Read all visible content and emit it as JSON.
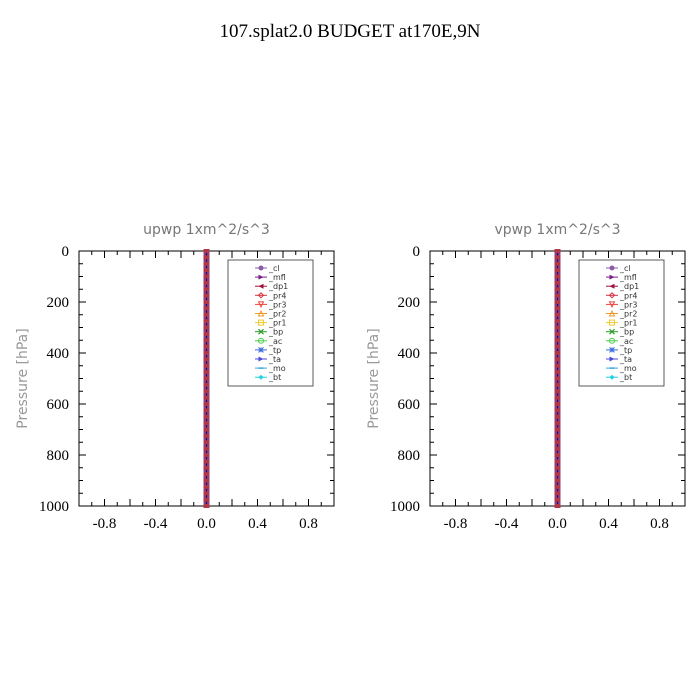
{
  "title": "107.splat2.0  BUDGET at170E,9N",
  "chart_data": [
    {
      "type": "line",
      "title": "upwp   1xm^2/s^3",
      "xlabel": "",
      "ylabel": "Pressure [hPa]",
      "xlim": [
        -1.0,
        1.0
      ],
      "ylim": [
        1000,
        0
      ],
      "y_inverted": true,
      "xticks": [
        "-0.8",
        "-0.4",
        "0.0",
        "0.4",
        "0.8"
      ],
      "xtick_values": [
        -0.8,
        -0.4,
        0.0,
        0.4,
        0.8
      ],
      "yticks": [
        "0",
        "200",
        "400",
        "600",
        "800",
        "1000"
      ],
      "ytick_values": [
        0,
        200,
        400,
        600,
        800,
        1000
      ],
      "legend_position": "top-right",
      "series": [
        {
          "name": "_cl",
          "color": "#8a5cae",
          "marker": "circle"
        },
        {
          "name": "_mfl",
          "color": "#7a1e8c",
          "marker": "triangle-right"
        },
        {
          "name": "_dp1",
          "color": "#a0123c",
          "marker": "triangle-left"
        },
        {
          "name": "_pr4",
          "color": "#d6303a",
          "marker": "diamond-open"
        },
        {
          "name": "_pr3",
          "color": "#e8453c",
          "marker": "triangle-down-open"
        },
        {
          "name": "_pr2",
          "color": "#f09a2c",
          "marker": "triangle-open"
        },
        {
          "name": "_pr1",
          "color": "#f0c830",
          "marker": "square-open"
        },
        {
          "name": "_bp",
          "color": "#2a9a2a",
          "marker": "x"
        },
        {
          "name": "_ac",
          "color": "#44cc44",
          "marker": "circle-open"
        },
        {
          "name": "_tp",
          "color": "#3a6adc",
          "marker": "asterisk"
        },
        {
          "name": "_ta",
          "color": "#4a4ae0",
          "marker": "triangle-right"
        },
        {
          "name": "_mo",
          "color": "#3aa8e0",
          "marker": "dash"
        },
        {
          "name": "_bt",
          "color": "#20d0e0",
          "marker": "diamond"
        }
      ],
      "x_values_all_series": 0.0,
      "y_levels": [
        0,
        25,
        50,
        75,
        100,
        125,
        150,
        175,
        200,
        225,
        250,
        275,
        300,
        325,
        350,
        375,
        400,
        425,
        450,
        475,
        500,
        525,
        550,
        575,
        600,
        625,
        650,
        675,
        700,
        725,
        750,
        775,
        800,
        825,
        850,
        875,
        900,
        925,
        950,
        975,
        1000
      ]
    },
    {
      "type": "line",
      "title": "vpwp   1xm^2/s^3",
      "xlabel": "",
      "ylabel": "Pressure [hPa]",
      "xlim": [
        -1.0,
        1.0
      ],
      "ylim": [
        1000,
        0
      ],
      "y_inverted": true,
      "xticks": [
        "-0.8",
        "-0.4",
        "0.0",
        "0.4",
        "0.8"
      ],
      "xtick_values": [
        -0.8,
        -0.4,
        0.0,
        0.4,
        0.8
      ],
      "yticks": [
        "0",
        "200",
        "400",
        "600",
        "800",
        "1000"
      ],
      "ytick_values": [
        0,
        200,
        400,
        600,
        800,
        1000
      ],
      "legend_position": "top-right",
      "series": [
        {
          "name": "_cl",
          "color": "#8a5cae",
          "marker": "circle"
        },
        {
          "name": "_mfl",
          "color": "#7a1e8c",
          "marker": "triangle-right"
        },
        {
          "name": "_dp1",
          "color": "#a0123c",
          "marker": "triangle-left"
        },
        {
          "name": "_pr4",
          "color": "#d6303a",
          "marker": "diamond-open"
        },
        {
          "name": "_pr3",
          "color": "#e8453c",
          "marker": "triangle-down-open"
        },
        {
          "name": "_pr2",
          "color": "#f09a2c",
          "marker": "triangle-open"
        },
        {
          "name": "_pr1",
          "color": "#f0c830",
          "marker": "square-open"
        },
        {
          "name": "_bp",
          "color": "#2a9a2a",
          "marker": "x"
        },
        {
          "name": "_ac",
          "color": "#44cc44",
          "marker": "circle-open"
        },
        {
          "name": "_tp",
          "color": "#3a6adc",
          "marker": "asterisk"
        },
        {
          "name": "_ta",
          "color": "#4a4ae0",
          "marker": "triangle-right"
        },
        {
          "name": "_mo",
          "color": "#3aa8e0",
          "marker": "dash"
        },
        {
          "name": "_bt",
          "color": "#20d0e0",
          "marker": "diamond"
        }
      ],
      "x_values_all_series": 0.0,
      "y_levels": [
        0,
        25,
        50,
        75,
        100,
        125,
        150,
        175,
        200,
        225,
        250,
        275,
        300,
        325,
        350,
        375,
        400,
        425,
        450,
        475,
        500,
        525,
        550,
        575,
        600,
        625,
        650,
        675,
        700,
        725,
        750,
        775,
        800,
        825,
        850,
        875,
        900,
        925,
        950,
        975,
        1000
      ]
    }
  ]
}
